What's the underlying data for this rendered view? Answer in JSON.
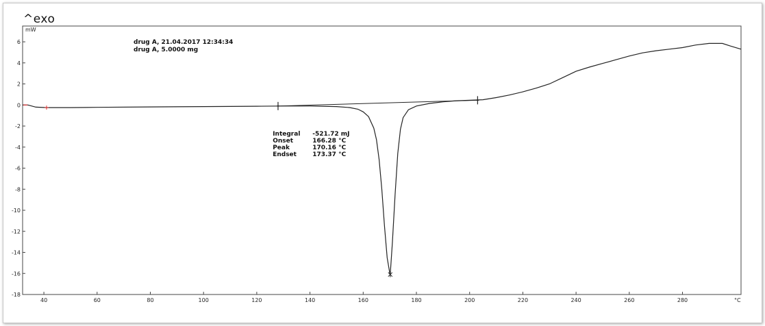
{
  "exo_label": "^exo",
  "chart_data": {
    "type": "line",
    "ylabel": "mW",
    "xunit": "°C",
    "xlim": [
      32,
      302
    ],
    "ylim": [
      -18,
      7.5
    ],
    "xticks": [
      40,
      60,
      80,
      100,
      120,
      140,
      160,
      180,
      200,
      220,
      240,
      260,
      280
    ],
    "yticks": [
      6,
      4,
      2,
      0,
      -2,
      -4,
      -6,
      -8,
      -10,
      -12,
      -14,
      -16,
      -18
    ],
    "grid": false,
    "header": [
      "drug A, 21.04.2017 12:34:34",
      "drug A, 5.0000 mg"
    ],
    "annotation": [
      {
        "label": "Integral",
        "value": "-521.72 mJ"
      },
      {
        "label": "Onset",
        "value": "166.28 °C"
      },
      {
        "label": "Peak",
        "value": "170.16 °C"
      },
      {
        "label": "Endset",
        "value": "173.37 °C"
      }
    ],
    "series": [
      {
        "x": [
          32,
          34,
          37,
          41,
          50,
          60,
          80,
          100,
          120,
          130,
          140,
          150,
          155,
          158,
          160,
          162,
          164,
          165,
          166,
          167,
          168,
          169,
          170,
          170.16,
          171,
          172,
          173,
          174,
          175,
          177,
          180,
          185,
          190,
          195,
          200,
          205,
          210,
          215,
          220,
          225,
          230,
          235,
          240,
          245,
          250,
          255,
          260,
          265,
          270,
          275,
          280,
          285,
          290,
          295,
          298,
          302
        ],
        "values": [
          0,
          0,
          -0.2,
          -0.25,
          -0.25,
          -0.22,
          -0.18,
          -0.15,
          -0.12,
          -0.1,
          -0.1,
          -0.15,
          -0.25,
          -0.4,
          -0.65,
          -1.1,
          -2.2,
          -3.3,
          -5.2,
          -8,
          -11.5,
          -14.5,
          -16,
          -16.1,
          -13,
          -8.5,
          -4.6,
          -2.3,
          -1.2,
          -0.45,
          -0.1,
          0.15,
          0.3,
          0.4,
          0.45,
          0.5,
          0.7,
          0.95,
          1.25,
          1.6,
          2.0,
          2.6,
          3.2,
          3.6,
          3.95,
          4.3,
          4.65,
          4.95,
          5.15,
          5.3,
          5.45,
          5.7,
          5.85,
          5.85,
          5.6,
          5.3
        ]
      }
    ],
    "baseline": {
      "x": [
        128,
        203
      ],
      "values": [
        -0.1,
        0.45
      ]
    },
    "limit_marks": [
      {
        "x": 128,
        "y": -0.1
      },
      {
        "x": 203,
        "y": 0.45
      }
    ],
    "peak_mark": {
      "x": 170.16,
      "y": -16.1
    }
  }
}
